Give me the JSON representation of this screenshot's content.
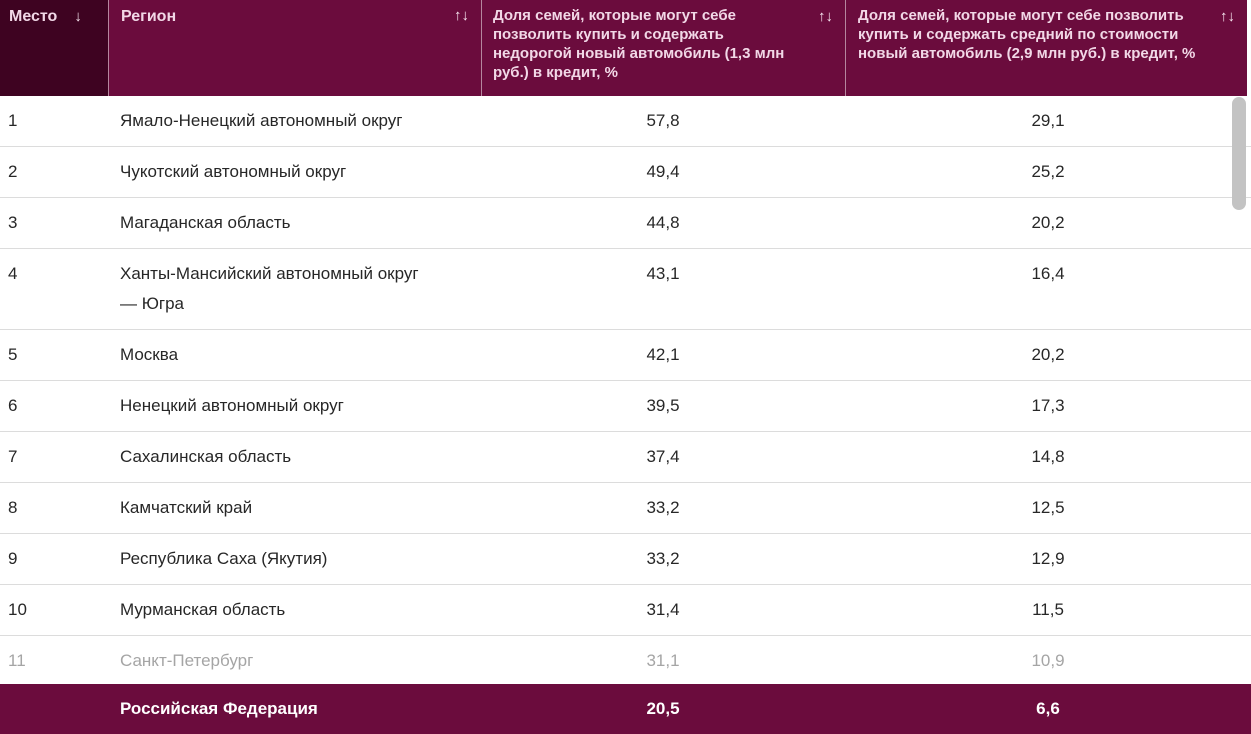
{
  "colors": {
    "header_bg": "#6B0C3D",
    "place_header_bg": "#3E0321",
    "footer_bg": "#6B0C3D",
    "header_text": "#F2D8E7",
    "header_icon": "#F8E7F1",
    "body_text": "#272727",
    "muted_text": "#A5A5A5",
    "divider": "#DCDCDC",
    "scrollbar_thumb": "#C3C3C3"
  },
  "table": {
    "columns": [
      {
        "id": "place",
        "label": "Место",
        "sort_icon": "↓"
      },
      {
        "id": "region",
        "label": "Регион",
        "sort_icon": "↑↓"
      },
      {
        "id": "value1",
        "label": "Доля семей, которые могут себе позволить купить и содержать недорогой новый автомобиль (1,3 млн руб.) в кредит, %",
        "sort_icon": "↑↓"
      },
      {
        "id": "value2",
        "label": "Доля семей, которые могут себе позволить купить и содержать средний по стоимости новый автомобиль (2,9 млн руб.) в кредит, %",
        "sort_icon": "↑↓"
      }
    ],
    "rows": [
      {
        "place": "1",
        "region": "Ямало-Ненецкий автономный округ",
        "value1": "57,8",
        "value2": "29,1"
      },
      {
        "place": "2",
        "region": "Чукотский автономный округ",
        "value1": "49,4",
        "value2": "25,2"
      },
      {
        "place": "3",
        "region": "Магаданская область",
        "value1": "44,8",
        "value2": "20,2"
      },
      {
        "place": "4",
        "region": "Ханты-Мансийский автономный округ\n— Югра",
        "value1": "43,1",
        "value2": "16,4"
      },
      {
        "place": "5",
        "region": "Москва",
        "value1": "42,1",
        "value2": "20,2"
      },
      {
        "place": "6",
        "region": "Ненецкий автономный округ",
        "value1": "39,5",
        "value2": "17,3"
      },
      {
        "place": "7",
        "region": "Сахалинская область",
        "value1": "37,4",
        "value2": "14,8"
      },
      {
        "place": "8",
        "region": "Камчатский край",
        "value1": "33,2",
        "value2": "12,5"
      },
      {
        "place": "9",
        "region": "Республика Саха (Якутия)",
        "value1": "33,2",
        "value2": "12,9"
      },
      {
        "place": "10",
        "region": "Мурманская область",
        "value1": "31,4",
        "value2": "11,5"
      },
      {
        "place": "11",
        "region": "Санкт-Петербург",
        "value1": "31,1",
        "value2": "10,9",
        "muted": true
      }
    ],
    "summary": {
      "region": "Российская Федерация",
      "value1": "20,5",
      "value2": "6,6"
    }
  }
}
